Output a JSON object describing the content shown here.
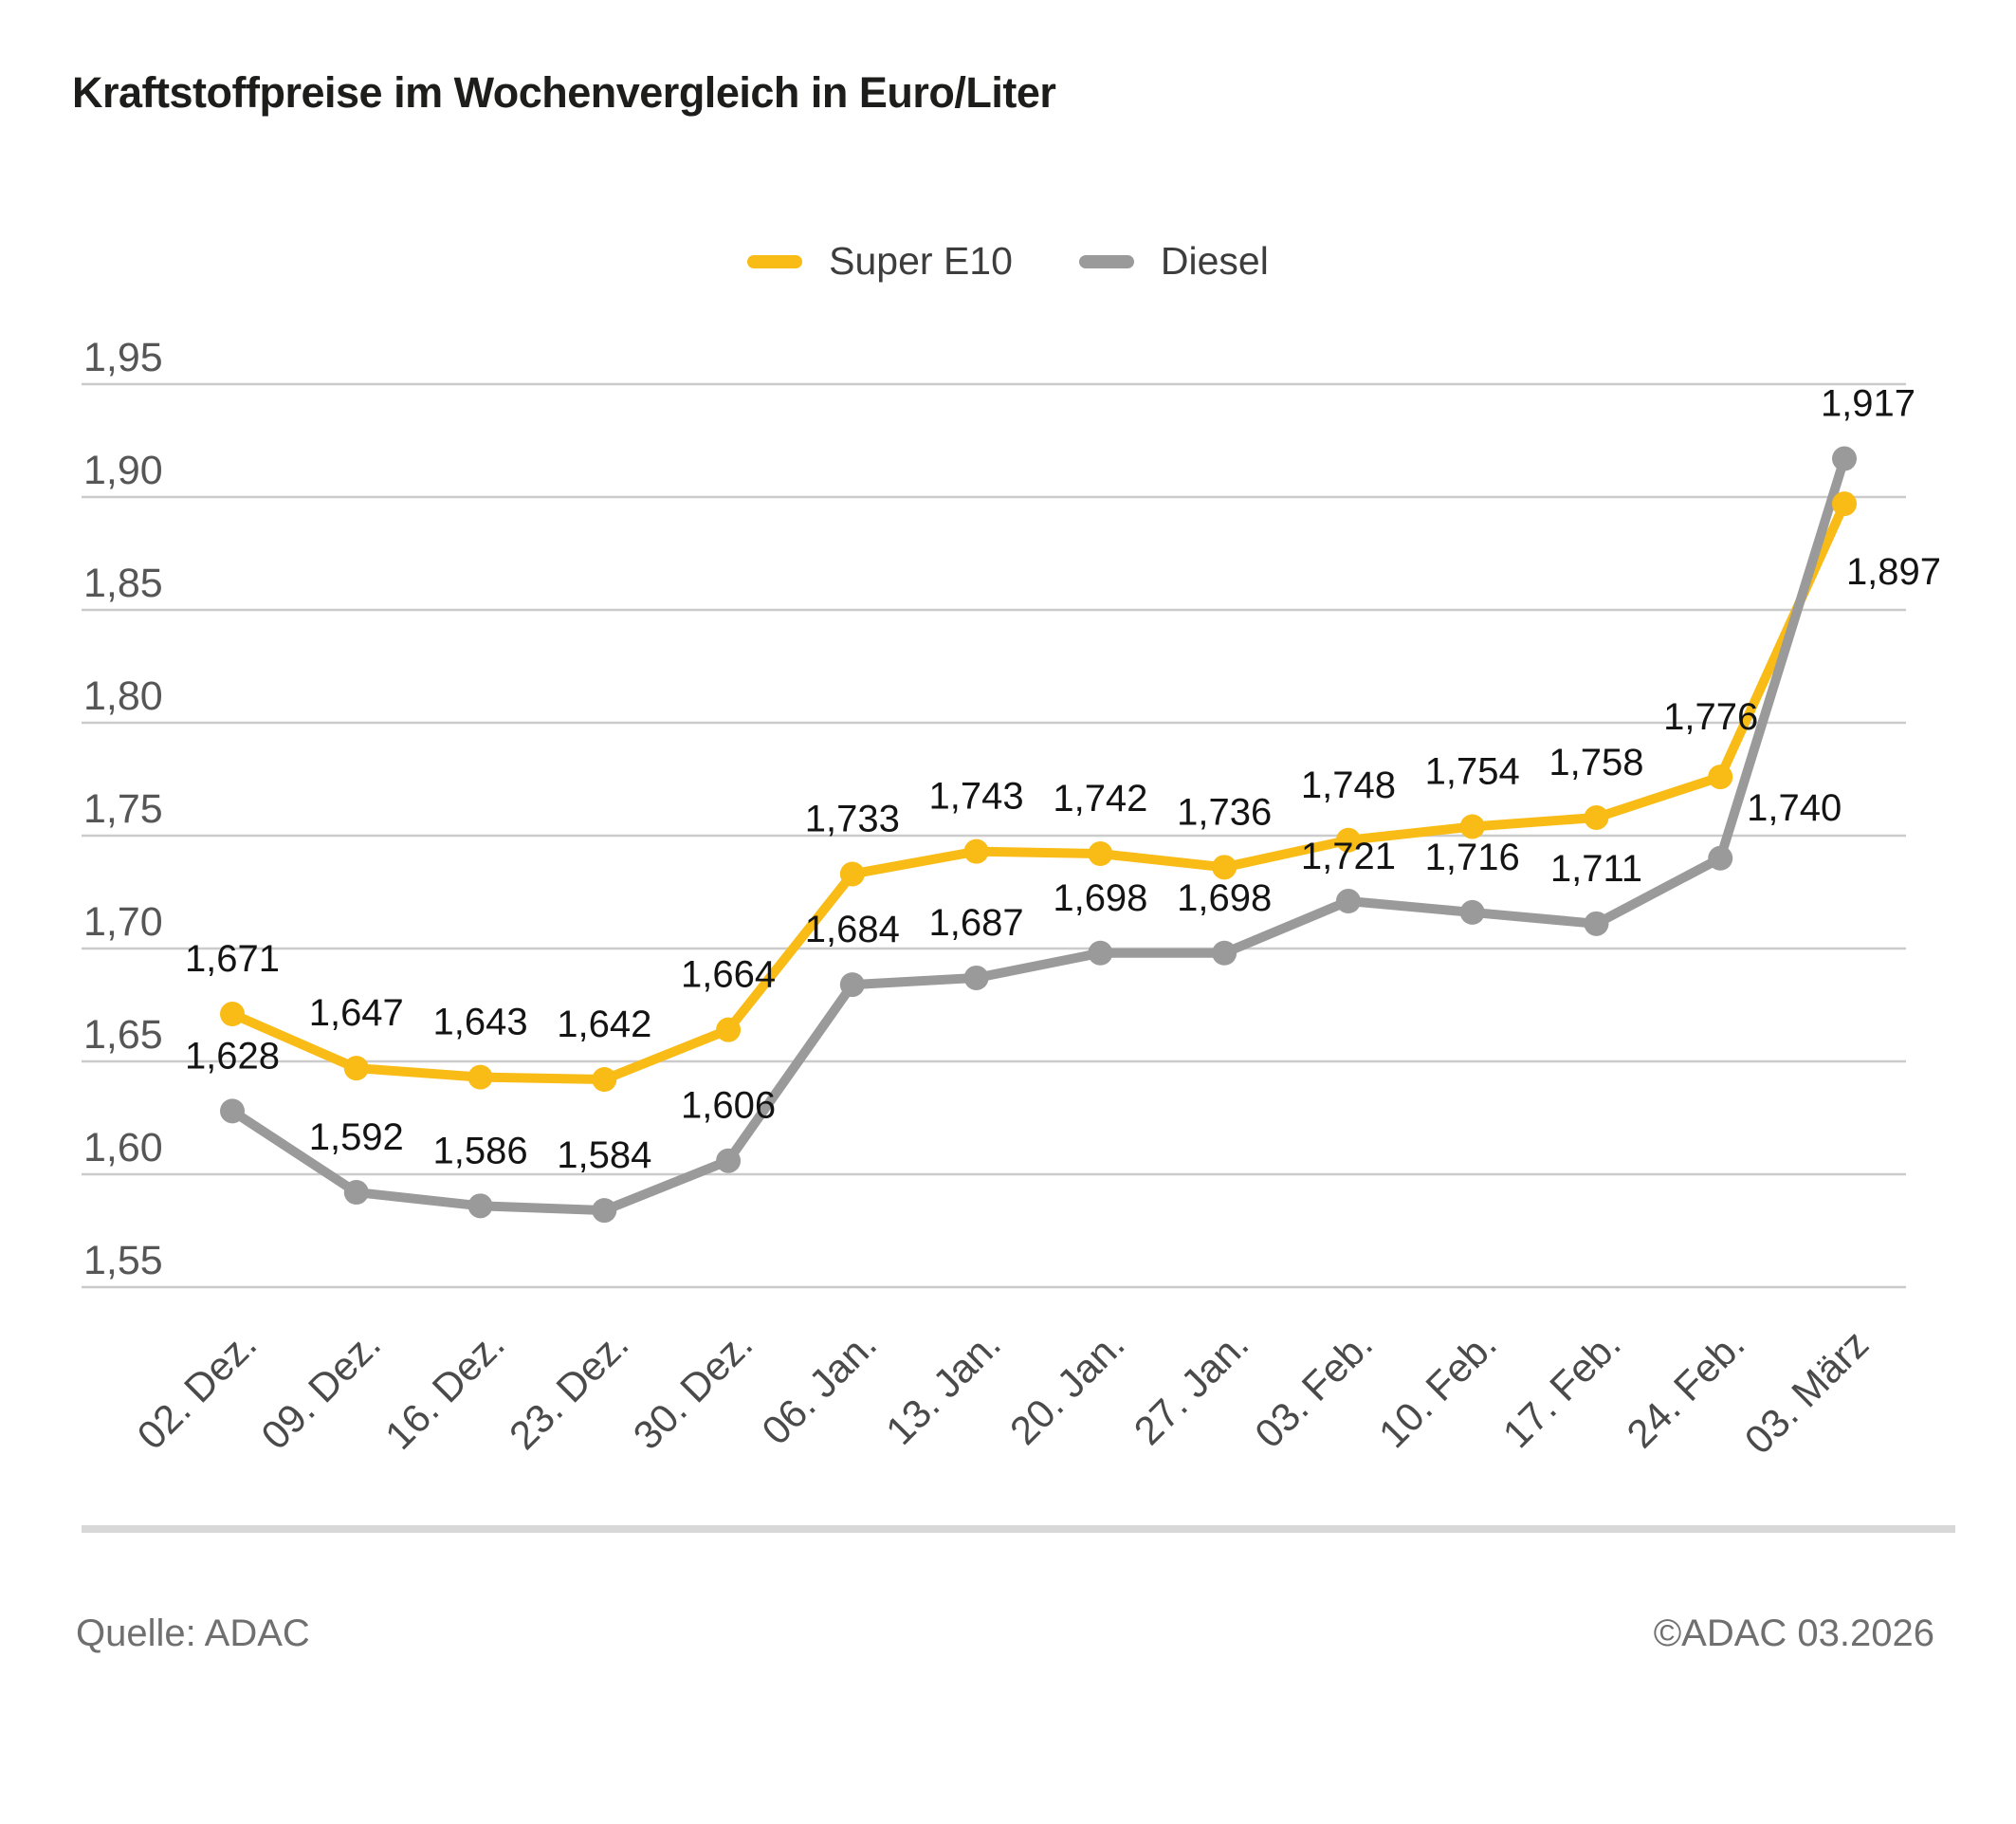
{
  "title": "Kraftstoffpreise im Wochenvergleich in Euro/Liter",
  "legend": {
    "items": [
      {
        "label": "Super E10",
        "color": "#F9BB16"
      },
      {
        "label": "Diesel",
        "color": "#9A9A9A"
      }
    ]
  },
  "footer": {
    "source": "Quelle: ADAC",
    "copyright": "©ADAC 03.2026"
  },
  "chart_data": {
    "type": "line",
    "title": "Kraftstoffpreise im Wochenvergleich in Euro/Liter",
    "xlabel": "",
    "ylabel": "Euro/Liter",
    "categories": [
      "02. Dez.",
      "09. Dez.",
      "16. Dez.",
      "23. Dez.",
      "30. Dez.",
      "06. Jan.",
      "13. Jan.",
      "20. Jan.",
      "27. Jan.",
      "03. Feb.",
      "10. Feb.",
      "17. Feb.",
      "24. Feb.",
      "03. März"
    ],
    "series": [
      {
        "name": "Super E10",
        "color": "#F9BB16",
        "values": [
          1.671,
          1.647,
          1.643,
          1.642,
          1.664,
          1.733,
          1.743,
          1.742,
          1.736,
          1.748,
          1.754,
          1.758,
          1.776,
          1.897
        ]
      },
      {
        "name": "Diesel",
        "color": "#9A9A9A",
        "values": [
          1.628,
          1.592,
          1.586,
          1.584,
          1.606,
          1.684,
          1.687,
          1.698,
          1.698,
          1.721,
          1.716,
          1.711,
          1.74,
          1.917
        ]
      }
    ],
    "ylim": [
      1.55,
      1.95
    ],
    "y_ticks": [
      "1,95",
      "1,90",
      "1,85",
      "1,80",
      "1,75",
      "1,70",
      "1,65",
      "1,60",
      "1,55"
    ],
    "decimal_separator": ",",
    "value_labels": true,
    "grid": "horizontal",
    "legend_position": "top-center",
    "colors": {
      "grid_line": "#CBCBCB",
      "value_label": "#141414",
      "axis_label": "#565656"
    }
  }
}
